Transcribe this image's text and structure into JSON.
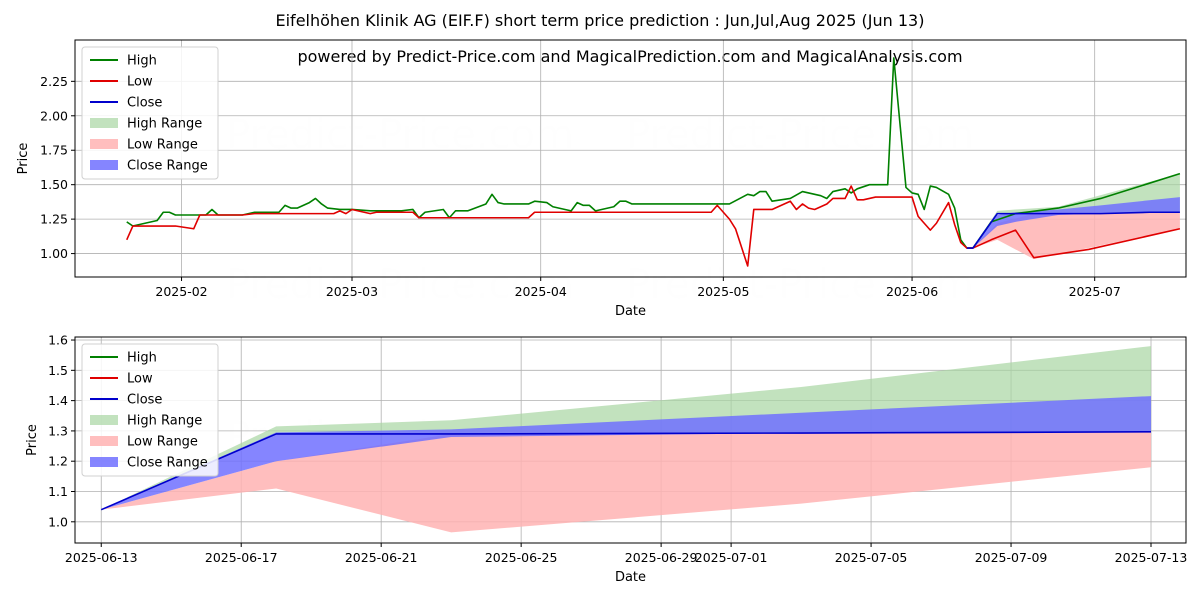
{
  "title": "Eifelhöhen Klinik AG (EIF.F) short term price prediction : Jun,Jul,Aug 2025 (Jun 13)",
  "subtitle": "powered by Predict-Price.com and MagicalPrediction.com and MagicalAnalysis.com",
  "watermark": "Predict-Price.com",
  "colors": {
    "high": "#008000",
    "low": "#e00000",
    "close": "#0000cc",
    "high_range": "#a8d5a2",
    "low_range": "#ffb3b3",
    "close_range": "#7070ff"
  },
  "chart_data": [
    {
      "type": "line",
      "title": "",
      "xlabel": "Date",
      "ylabel": "Price",
      "x_unit": "days since 2025-01-01",
      "xlim": [
        13.5,
        196
      ],
      "ylim": [
        0.83,
        2.55
      ],
      "yticks": [
        1.0,
        1.25,
        1.5,
        1.75,
        2.0,
        2.25
      ],
      "ytick_labels": [
        "1.00",
        "1.25",
        "1.50",
        "1.75",
        "2.00",
        "2.25"
      ],
      "xticks": [
        31,
        59,
        90,
        120,
        151,
        181
      ],
      "xtick_labels": [
        "2025-02",
        "2025-03",
        "2025-04",
        "2025-05",
        "2025-06",
        "2025-07"
      ],
      "legend": {
        "position": "top-left",
        "entries": [
          {
            "label": "High",
            "kind": "line",
            "key": "high"
          },
          {
            "label": "Low",
            "kind": "line",
            "key": "low"
          },
          {
            "label": "Close",
            "kind": "line",
            "key": "close"
          },
          {
            "label": "High Range",
            "kind": "patch",
            "key": "high_range"
          },
          {
            "label": "Low Range",
            "kind": "patch",
            "key": "low_range"
          },
          {
            "label": "Close Range",
            "kind": "patch",
            "key": "close_range"
          }
        ]
      },
      "series": [
        {
          "name": "High",
          "key": "high",
          "points": [
            [
              22,
              1.23
            ],
            [
              23,
              1.2
            ],
            [
              25,
              1.22
            ],
            [
              27,
              1.24
            ],
            [
              28,
              1.3
            ],
            [
              29,
              1.3
            ],
            [
              30,
              1.28
            ],
            [
              33,
              1.28
            ],
            [
              35,
              1.28
            ],
            [
              36,
              1.32
            ],
            [
              37,
              1.28
            ],
            [
              41,
              1.28
            ],
            [
              43,
              1.3
            ],
            [
              46,
              1.3
            ],
            [
              47,
              1.3
            ],
            [
              48,
              1.35
            ],
            [
              49,
              1.33
            ],
            [
              50,
              1.33
            ],
            [
              52,
              1.37
            ],
            [
              53,
              1.4
            ],
            [
              54,
              1.36
            ],
            [
              55,
              1.33
            ],
            [
              57,
              1.32
            ],
            [
              59,
              1.32
            ],
            [
              62,
              1.31
            ],
            [
              64,
              1.31
            ],
            [
              67,
              1.31
            ],
            [
              69,
              1.32
            ],
            [
              70,
              1.26
            ],
            [
              71,
              1.3
            ],
            [
              74,
              1.32
            ],
            [
              75,
              1.26
            ],
            [
              76,
              1.31
            ],
            [
              78,
              1.31
            ],
            [
              81,
              1.36
            ],
            [
              82,
              1.43
            ],
            [
              83,
              1.37
            ],
            [
              84,
              1.36
            ],
            [
              88,
              1.36
            ],
            [
              89,
              1.38
            ],
            [
              91,
              1.37
            ],
            [
              92,
              1.34
            ],
            [
              93,
              1.33
            ],
            [
              95,
              1.31
            ],
            [
              96,
              1.37
            ],
            [
              97,
              1.35
            ],
            [
              98,
              1.35
            ],
            [
              99,
              1.31
            ],
            [
              101,
              1.33
            ],
            [
              102,
              1.34
            ],
            [
              103,
              1.38
            ],
            [
              104,
              1.38
            ],
            [
              105,
              1.36
            ],
            [
              110,
              1.36
            ],
            [
              118,
              1.36
            ],
            [
              121,
              1.36
            ],
            [
              124,
              1.43
            ],
            [
              125,
              1.42
            ],
            [
              126,
              1.45
            ],
            [
              127,
              1.45
            ],
            [
              128,
              1.38
            ],
            [
              131,
              1.4
            ],
            [
              133,
              1.45
            ],
            [
              136,
              1.42
            ],
            [
              137,
              1.4
            ],
            [
              138,
              1.45
            ],
            [
              140,
              1.47
            ],
            [
              141,
              1.44
            ],
            [
              142,
              1.47
            ],
            [
              144,
              1.5
            ],
            [
              147,
              1.5
            ],
            [
              148,
              2.42
            ],
            [
              150,
              1.48
            ],
            [
              151,
              1.44
            ],
            [
              152,
              1.43
            ],
            [
              153,
              1.32
            ],
            [
              154,
              1.49
            ],
            [
              155,
              1.48
            ],
            [
              157,
              1.43
            ],
            [
              158,
              1.33
            ],
            [
              159,
              1.1
            ],
            [
              160,
              1.04
            ],
            [
              161,
              1.04
            ],
            [
              164,
              1.23
            ],
            [
              168,
              1.29
            ],
            [
              175,
              1.33
            ],
            [
              182,
              1.4
            ],
            [
              195,
              1.58
            ]
          ]
        },
        {
          "name": "Low",
          "key": "low",
          "points": [
            [
              22,
              1.1
            ],
            [
              23,
              1.2
            ],
            [
              25,
              1.2
            ],
            [
              27,
              1.2
            ],
            [
              28,
              1.2
            ],
            [
              29,
              1.2
            ],
            [
              30,
              1.2
            ],
            [
              33,
              1.18
            ],
            [
              34,
              1.28
            ],
            [
              37,
              1.28
            ],
            [
              41,
              1.28
            ],
            [
              43,
              1.29
            ],
            [
              46,
              1.29
            ],
            [
              56,
              1.29
            ],
            [
              57,
              1.31
            ],
            [
              58,
              1.29
            ],
            [
              59,
              1.32
            ],
            [
              62,
              1.29
            ],
            [
              63,
              1.3
            ],
            [
              68,
              1.3
            ],
            [
              69,
              1.3
            ],
            [
              70,
              1.26
            ],
            [
              75,
              1.26
            ],
            [
              85,
              1.26
            ],
            [
              88,
              1.26
            ],
            [
              89,
              1.3
            ],
            [
              92,
              1.3
            ],
            [
              95,
              1.3
            ],
            [
              98,
              1.3
            ],
            [
              105,
              1.3
            ],
            [
              118,
              1.3
            ],
            [
              119,
              1.35
            ],
            [
              121,
              1.25
            ],
            [
              122,
              1.18
            ],
            [
              124,
              0.91
            ],
            [
              125,
              1.32
            ],
            [
              128,
              1.32
            ],
            [
              130,
              1.36
            ],
            [
              131,
              1.38
            ],
            [
              132,
              1.32
            ],
            [
              133,
              1.36
            ],
            [
              134,
              1.33
            ],
            [
              135,
              1.32
            ],
            [
              136,
              1.34
            ],
            [
              137,
              1.36
            ],
            [
              138,
              1.4
            ],
            [
              140,
              1.4
            ],
            [
              141,
              1.49
            ],
            [
              142,
              1.39
            ],
            [
              143,
              1.39
            ],
            [
              144,
              1.4
            ],
            [
              145,
              1.41
            ],
            [
              151,
              1.41
            ],
            [
              152,
              1.27
            ],
            [
              153,
              1.22
            ],
            [
              154,
              1.17
            ],
            [
              155,
              1.22
            ],
            [
              157,
              1.37
            ],
            [
              158,
              1.21
            ],
            [
              159,
              1.08
            ],
            [
              160,
              1.04
            ],
            [
              161,
              1.04
            ],
            [
              164,
              1.1
            ],
            [
              168,
              1.17
            ],
            [
              171,
              0.97
            ],
            [
              180,
              1.03
            ],
            [
              195,
              1.18
            ]
          ]
        },
        {
          "name": "Close",
          "key": "close",
          "points": [
            [
              160,
              1.04
            ],
            [
              161,
              1.04
            ],
            [
              165,
              1.29
            ],
            [
              168,
              1.29
            ],
            [
              175,
              1.29
            ],
            [
              182,
              1.29
            ],
            [
              190,
              1.3
            ],
            [
              195,
              1.3
            ]
          ]
        }
      ],
      "ranges": [
        {
          "name": "High Range",
          "key": "high_range",
          "x": [
            161,
            165,
            168,
            175,
            195
          ],
          "lower": [
            1.04,
            1.29,
            1.29,
            1.29,
            1.3
          ],
          "upper": [
            1.04,
            1.31,
            1.32,
            1.34,
            1.58
          ]
        },
        {
          "name": "Low Range",
          "key": "low_range",
          "x": [
            161,
            165,
            171,
            180,
            195
          ],
          "lower": [
            1.04,
            1.1,
            0.96,
            1.04,
            1.18
          ],
          "upper": [
            1.04,
            1.22,
            1.29,
            1.29,
            1.3
          ]
        },
        {
          "name": "Close Range",
          "key": "close_range",
          "x": [
            161,
            165,
            168,
            175,
            182,
            195
          ],
          "lower": [
            1.04,
            1.2,
            1.23,
            1.28,
            1.29,
            1.3
          ],
          "upper": [
            1.04,
            1.28,
            1.3,
            1.32,
            1.35,
            1.41
          ]
        }
      ]
    },
    {
      "type": "line",
      "title": "",
      "xlabel": "Date",
      "ylabel": "Price",
      "x_unit": "days since 2025-06-13",
      "xlim": [
        -0.75,
        31
      ],
      "ylim": [
        0.93,
        1.61
      ],
      "yticks": [
        1.0,
        1.1,
        1.2,
        1.3,
        1.4,
        1.5,
        1.6
      ],
      "ytick_labels": [
        "1.0",
        "1.1",
        "1.2",
        "1.3",
        "1.4",
        "1.5",
        "1.6"
      ],
      "xticks": [
        0,
        4,
        8,
        12,
        16,
        18,
        22,
        26,
        30
      ],
      "xtick_labels": [
        "2025-06-13",
        "2025-06-17",
        "2025-06-21",
        "2025-06-25",
        "2025-06-29",
        "2025-07-01",
        "2025-07-05",
        "2025-07-09",
        "2025-07-13"
      ],
      "legend": {
        "position": "top-left",
        "entries": [
          {
            "label": "High",
            "kind": "line",
            "key": "high"
          },
          {
            "label": "Low",
            "kind": "line",
            "key": "low"
          },
          {
            "label": "Close",
            "kind": "line",
            "key": "close"
          },
          {
            "label": "High Range",
            "kind": "patch",
            "key": "high_range"
          },
          {
            "label": "Low Range",
            "kind": "patch",
            "key": "low_range"
          },
          {
            "label": "Close Range",
            "kind": "patch",
            "key": "close_range"
          }
        ]
      },
      "series": [
        {
          "name": "Close",
          "key": "close",
          "points": [
            [
              0,
              1.04
            ],
            [
              5,
              1.29
            ],
            [
              10,
              1.29
            ],
            [
              20,
              1.293
            ],
            [
              30,
              1.297
            ]
          ]
        }
      ],
      "ranges": [
        {
          "name": "High Range",
          "key": "high_range",
          "x": [
            0,
            5,
            10,
            20,
            30
          ],
          "lower": [
            1.04,
            1.29,
            1.29,
            1.293,
            1.297
          ],
          "upper": [
            1.04,
            1.315,
            1.335,
            1.445,
            1.58
          ]
        },
        {
          "name": "Low Range",
          "key": "low_range",
          "x": [
            0,
            5,
            10,
            20,
            30
          ],
          "lower": [
            1.04,
            1.11,
            0.965,
            1.06,
            1.18
          ],
          "upper": [
            1.04,
            1.2,
            1.29,
            1.293,
            1.297
          ]
        },
        {
          "name": "Close Range",
          "key": "close_range",
          "x": [
            0,
            5,
            10,
            20,
            30
          ],
          "lower": [
            1.04,
            1.2,
            1.28,
            1.293,
            1.297
          ],
          "upper": [
            1.04,
            1.295,
            1.305,
            1.36,
            1.415
          ]
        }
      ]
    }
  ]
}
